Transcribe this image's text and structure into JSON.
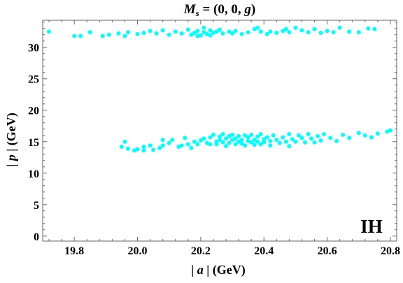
{
  "chart_data": {
    "type": "scatter",
    "title_main": "M",
    "title_sub": "s",
    "title_rest": " = (0, 0, ",
    "title_var": "g",
    "title_close": ")",
    "xlabel_pre": "| ",
    "xlabel_var": "a",
    "xlabel_post": " | (GeV)",
    "ylabel_pre": "| ",
    "ylabel_var": "p",
    "ylabel_post": " | (GeV)",
    "annotation": "IH",
    "xlim": [
      19.7,
      20.82
    ],
    "ylim": [
      -0.8,
      34.3
    ],
    "xticks": [
      19.8,
      20.0,
      20.2,
      20.4,
      20.6,
      20.8
    ],
    "xtick_labels": [
      "19.8",
      "20.0",
      "20.2",
      "20.4",
      "20.6",
      "20.8"
    ],
    "yticks": [
      0,
      5,
      10,
      15,
      20,
      25,
      30
    ],
    "ytick_labels": [
      "0",
      "5",
      "10",
      "15",
      "20",
      "25",
      "30"
    ],
    "point_color": "#00ffff",
    "points": [
      [
        19.72,
        32.5
      ],
      [
        19.8,
        31.8
      ],
      [
        19.82,
        31.8
      ],
      [
        19.85,
        32.4
      ],
      [
        19.89,
        31.8
      ],
      [
        19.91,
        32.0
      ],
      [
        19.94,
        32.2
      ],
      [
        19.96,
        31.8
      ],
      [
        19.97,
        32.4
      ],
      [
        20.0,
        32.1
      ],
      [
        20.02,
        32.3
      ],
      [
        20.04,
        32.6
      ],
      [
        20.06,
        32.2
      ],
      [
        20.08,
        32.7
      ],
      [
        20.1,
        32.0
      ],
      [
        20.12,
        32.5
      ],
      [
        20.14,
        32.2
      ],
      [
        20.16,
        32.8
      ],
      [
        20.17,
        32.0
      ],
      [
        20.18,
        32.3
      ],
      [
        20.19,
        31.8
      ],
      [
        20.19,
        32.6
      ],
      [
        20.2,
        31.9
      ],
      [
        20.21,
        33.1
      ],
      [
        20.21,
        32.4
      ],
      [
        20.22,
        32.1
      ],
      [
        20.23,
        31.9
      ],
      [
        20.23,
        32.7
      ],
      [
        20.24,
        32.3
      ],
      [
        20.25,
        32.5
      ],
      [
        20.26,
        32.8
      ],
      [
        20.27,
        32.2
      ],
      [
        20.29,
        32.5
      ],
      [
        20.3,
        32.2
      ],
      [
        20.31,
        32.6
      ],
      [
        20.33,
        32.1
      ],
      [
        20.35,
        32.4
      ],
      [
        20.37,
        32.9
      ],
      [
        20.38,
        33.1
      ],
      [
        20.39,
        32.5
      ],
      [
        20.41,
        32.1
      ],
      [
        20.42,
        32.5
      ],
      [
        20.44,
        32.3
      ],
      [
        20.46,
        32.6
      ],
      [
        20.47,
        32.9
      ],
      [
        20.48,
        32.4
      ],
      [
        20.5,
        33.1
      ],
      [
        20.52,
        32.7
      ],
      [
        20.54,
        32.4
      ],
      [
        20.56,
        32.9
      ],
      [
        20.58,
        32.3
      ],
      [
        20.6,
        32.6
      ],
      [
        20.62,
        32.4
      ],
      [
        20.64,
        33.1
      ],
      [
        20.67,
        32.5
      ],
      [
        20.7,
        32.4
      ],
      [
        20.73,
        33.0
      ],
      [
        20.75,
        32.9
      ],
      [
        19.95,
        14.2
      ],
      [
        19.96,
        15.0
      ],
      [
        19.97,
        13.9
      ],
      [
        19.99,
        13.6
      ],
      [
        20.0,
        13.8
      ],
      [
        20.02,
        13.6
      ],
      [
        20.02,
        14.2
      ],
      [
        20.04,
        14.4
      ],
      [
        20.05,
        13.7
      ],
      [
        20.07,
        14.0
      ],
      [
        20.08,
        14.4
      ],
      [
        20.08,
        15.3
      ],
      [
        20.1,
        14.8
      ],
      [
        20.11,
        15.3
      ],
      [
        20.13,
        14.2
      ],
      [
        20.14,
        14.4
      ],
      [
        20.15,
        15.6
      ],
      [
        20.16,
        14.6
      ],
      [
        20.17,
        14.0
      ],
      [
        20.18,
        15.0
      ],
      [
        20.19,
        14.6
      ],
      [
        20.2,
        15.2
      ],
      [
        20.21,
        15.5
      ],
      [
        20.22,
        14.8
      ],
      [
        20.23,
        15.7
      ],
      [
        20.23,
        14.6
      ],
      [
        20.24,
        16.1
      ],
      [
        20.25,
        15.0
      ],
      [
        20.25,
        14.6
      ],
      [
        20.26,
        15.8
      ],
      [
        20.26,
        15.3
      ],
      [
        20.27,
        14.9
      ],
      [
        20.27,
        16.2
      ],
      [
        20.28,
        15.5
      ],
      [
        20.28,
        14.3
      ],
      [
        20.29,
        15.9
      ],
      [
        20.29,
        14.8
      ],
      [
        20.3,
        15.3
      ],
      [
        20.3,
        16.1
      ],
      [
        20.31,
        14.6
      ],
      [
        20.31,
        15.5
      ],
      [
        20.32,
        15.0
      ],
      [
        20.32,
        15.9
      ],
      [
        20.33,
        14.7
      ],
      [
        20.33,
        15.3
      ],
      [
        20.34,
        16.0
      ],
      [
        20.34,
        14.4
      ],
      [
        20.35,
        15.1
      ],
      [
        20.35,
        15.7
      ],
      [
        20.36,
        14.9
      ],
      [
        20.36,
        16.1
      ],
      [
        20.37,
        15.3
      ],
      [
        20.37,
        14.5
      ],
      [
        20.38,
        15.8
      ],
      [
        20.38,
        15.0
      ],
      [
        20.39,
        14.6
      ],
      [
        20.39,
        16.2
      ],
      [
        20.4,
        15.4
      ],
      [
        20.4,
        14.9
      ],
      [
        20.41,
        15.7
      ],
      [
        20.42,
        15.1
      ],
      [
        20.42,
        14.4
      ],
      [
        20.43,
        16.0
      ],
      [
        20.44,
        15.3
      ],
      [
        20.45,
        14.8
      ],
      [
        20.46,
        15.7
      ],
      [
        20.47,
        15.0
      ],
      [
        20.48,
        14.3
      ],
      [
        20.48,
        16.2
      ],
      [
        20.49,
        15.4
      ],
      [
        20.5,
        15.0
      ],
      [
        20.51,
        16.0
      ],
      [
        20.52,
        15.6
      ],
      [
        20.53,
        14.9
      ],
      [
        20.54,
        16.2
      ],
      [
        20.55,
        15.5
      ],
      [
        20.56,
        14.9
      ],
      [
        20.57,
        15.9
      ],
      [
        20.58,
        15.2
      ],
      [
        20.59,
        16.2
      ],
      [
        20.61,
        15.6
      ],
      [
        20.63,
        15.1
      ],
      [
        20.65,
        16.1
      ],
      [
        20.67,
        15.6
      ],
      [
        20.7,
        16.4
      ],
      [
        20.72,
        16.0
      ],
      [
        20.74,
        15.7
      ],
      [
        20.76,
        16.3
      ],
      [
        20.79,
        16.6
      ],
      [
        20.8,
        16.8
      ]
    ]
  }
}
